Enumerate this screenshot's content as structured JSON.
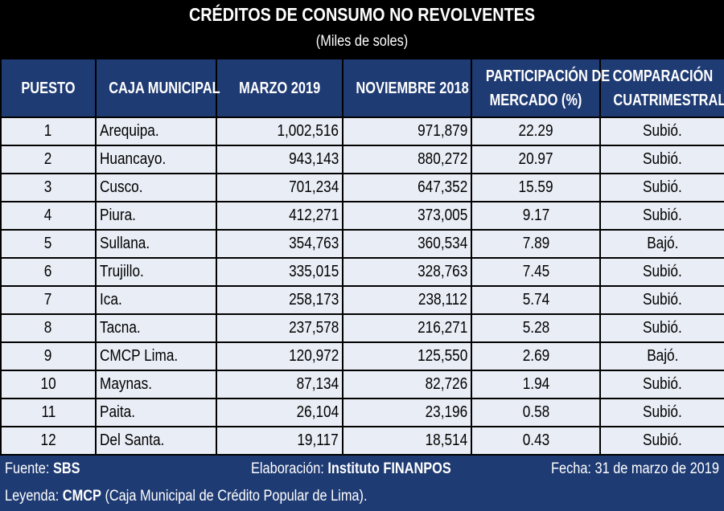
{
  "title": "CRÉDITOS DE CONSUMO NO REVOLVENTES",
  "subtitle": "(Miles de soles)",
  "headers": {
    "puesto": "PUESTO",
    "caja": "CAJA MUNICIPAL",
    "marzo": "MARZO 2019",
    "noviembre": "NOVIEMBRE 2018",
    "participacion_1": "PARTICIPACIÓN DE",
    "participacion_2": "MERCADO (%)",
    "comparacion_1": "COMPARACIÓN",
    "comparacion_2": "CUATRIMESTRAL"
  },
  "rows": [
    {
      "puesto": "1",
      "caja": "Arequipa.",
      "marzo": "1,002,516",
      "noviembre": "971,879",
      "participacion": "22.29",
      "comparacion": "Subió."
    },
    {
      "puesto": "2",
      "caja": "Huancayo.",
      "marzo": "943,143",
      "noviembre": "880,272",
      "participacion": "20.97",
      "comparacion": "Subió."
    },
    {
      "puesto": "3",
      "caja": "Cusco.",
      "marzo": "701,234",
      "noviembre": "647,352",
      "participacion": "15.59",
      "comparacion": "Subió."
    },
    {
      "puesto": "4",
      "caja": "Piura.",
      "marzo": "412,271",
      "noviembre": "373,005",
      "participacion": "9.17",
      "comparacion": "Subió."
    },
    {
      "puesto": "5",
      "caja": "Sullana.",
      "marzo": "354,763",
      "noviembre": "360,534",
      "participacion": "7.89",
      "comparacion": "Bajó."
    },
    {
      "puesto": "6",
      "caja": "Trujillo.",
      "marzo": "335,015",
      "noviembre": "328,763",
      "participacion": "7.45",
      "comparacion": "Subió."
    },
    {
      "puesto": "7",
      "caja": "Ica.",
      "marzo": "258,173",
      "noviembre": "238,112",
      "participacion": "5.74",
      "comparacion": "Subió."
    },
    {
      "puesto": "8",
      "caja": "Tacna.",
      "marzo": "237,578",
      "noviembre": "216,271",
      "participacion": "5.28",
      "comparacion": "Subió."
    },
    {
      "puesto": "9",
      "caja": "CMCP Lima.",
      "marzo": "120,972",
      "noviembre": "125,550",
      "participacion": "2.69",
      "comparacion": "Bajó."
    },
    {
      "puesto": "10",
      "caja": "Maynas.",
      "marzo": "87,134",
      "noviembre": "82,726",
      "participacion": "1.94",
      "comparacion": "Subió."
    },
    {
      "puesto": "11",
      "caja": "Paita.",
      "marzo": "26,104",
      "noviembre": "23,196",
      "participacion": "0.58",
      "comparacion": "Subió."
    },
    {
      "puesto": "12",
      "caja": "Del Santa.",
      "marzo": "19,117",
      "noviembre": "18,514",
      "participacion": "0.43",
      "comparacion": "Subió."
    }
  ],
  "footer": {
    "fuente_label": "Fuente: ",
    "fuente_value": "SBS",
    "elaboracion_label": "Elaboración: ",
    "elaboracion_value": "Instituto FINANPOS",
    "fecha": "Fecha: 31 de marzo de 2019",
    "leyenda_label": "Leyenda: ",
    "leyenda_value": "CMCP",
    "leyenda_text": " (Caja Municipal de Crédito Popular de Lima)."
  },
  "colors": {
    "header_bg": "#1f3b73",
    "cell_bg": "#e9edf5",
    "title_bg": "#000000"
  }
}
